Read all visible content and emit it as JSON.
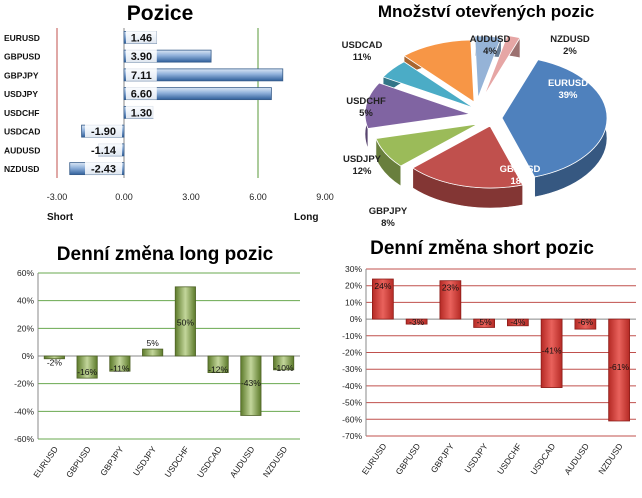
{
  "chart_data": [
    {
      "type": "bar",
      "orientation": "horizontal",
      "title": "Pozice",
      "categories": [
        "EURUSD",
        "GBPUSD",
        "GBPJPY",
        "USDJPY",
        "USDCHF",
        "USDCAD",
        "AUDUSD",
        "NZDUSD"
      ],
      "values": [
        1.46,
        3.9,
        7.11,
        6.6,
        1.3,
        -1.9,
        -1.14,
        -2.43
      ],
      "value_labels": [
        "1.46",
        "3.90",
        "7.11",
        "6.60",
        "1.30",
        "-1.90",
        "-1.14",
        "-2.43"
      ],
      "xlim": [
        -3.0,
        9.0
      ],
      "xticks": [
        -3.0,
        0.0,
        3.0,
        6.0,
        9.0
      ],
      "xtick_labels": [
        "-3.00",
        "0.00",
        "3.00",
        "6.00",
        "9.00"
      ],
      "left_axis_label": "Short",
      "right_axis_label": "Long",
      "reference_lines": [
        -3.0,
        6.0
      ]
    },
    {
      "type": "pie",
      "title": "Množství otevřených pozic",
      "slices": [
        {
          "label": "EURUSD",
          "pct_label": "39%",
          "value": 39,
          "color": "#4f81bd"
        },
        {
          "label": "GBPUSD",
          "pct_label": "18%",
          "value": 18,
          "color": "#c0504d"
        },
        {
          "label": "GBPJPY",
          "pct_label": "8%",
          "value": 8,
          "color": "#9bbb59"
        },
        {
          "label": "USDJPY",
          "pct_label": "12%",
          "value": 12,
          "color": "#8064a2"
        },
        {
          "label": "USDCHF",
          "pct_label": "5%",
          "value": 5,
          "color": "#4bacc6"
        },
        {
          "label": "USDCAD",
          "pct_label": "11%",
          "value": 11,
          "color": "#f79646"
        },
        {
          "label": "AUDUSD",
          "pct_label": "4%",
          "value": 4,
          "color": "#95b3d7"
        },
        {
          "label": "NZDUSD",
          "pct_label": "2%",
          "value": 2,
          "color": "#e6a6a5"
        }
      ]
    },
    {
      "type": "bar",
      "title": "Denní změna long pozic",
      "categories": [
        "EURUSD",
        "GBPUSD",
        "GBPJPY",
        "USDJPY",
        "USDCHF",
        "USDCAD",
        "AUDUSD",
        "NZDUSD"
      ],
      "values": [
        -2,
        -16,
        -11,
        5,
        50,
        -12,
        -43,
        -10
      ],
      "value_labels": [
        "-2%",
        "-16%",
        "-11%",
        "5%",
        "50%",
        "-12%",
        "-43%",
        "-10%"
      ],
      "ylim": [
        -60,
        60
      ],
      "yticks": [
        -60,
        -40,
        -20,
        0,
        20,
        40,
        60
      ],
      "ytick_labels": [
        "-60%",
        "-40%",
        "-20%",
        "0%",
        "20%",
        "40%",
        "60%"
      ],
      "grid": true,
      "color": "#77933c"
    },
    {
      "type": "bar",
      "title": "Denní změna short pozic",
      "categories": [
        "EURUSD",
        "GBPUSD",
        "GBPJPY",
        "USDJPY",
        "USDCHF",
        "USDCAD",
        "AUDUSD",
        "NZDUSD"
      ],
      "values": [
        24,
        -3,
        23,
        -5,
        -4,
        -41,
        -6,
        -61
      ],
      "value_labels": [
        "24%",
        "-3%",
        "23%",
        "-5%",
        "-4%",
        "-41%",
        "-6%",
        "-61%"
      ],
      "ylim": [
        -70,
        30
      ],
      "yticks": [
        -70,
        -60,
        -50,
        -40,
        -30,
        -20,
        -10,
        0,
        10,
        20,
        30
      ],
      "ytick_labels": [
        "-70%",
        "-60%",
        "-50%",
        "-40%",
        "-30%",
        "-20%",
        "-10%",
        "0%",
        "10%",
        "20%",
        "30%"
      ],
      "grid": true,
      "color": "#c0392b"
    }
  ]
}
